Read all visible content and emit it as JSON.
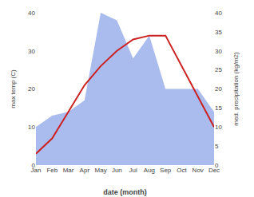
{
  "chart_data": {
    "type": "line",
    "categories": [
      "Jan",
      "Feb",
      "Mar",
      "Apr",
      "May",
      "Jun",
      "Jul",
      "Aug",
      "Sep",
      "Oct",
      "Nov",
      "Dec"
    ],
    "series": [
      {
        "type": "area",
        "color": "#aabbee",
        "axis": "y2",
        "values": [
          10,
          13,
          14,
          17,
          40,
          38,
          28,
          34,
          20,
          20,
          20,
          14
        ]
      },
      {
        "type": "line",
        "color": "#cc2222",
        "axis": "y",
        "values": [
          3,
          7,
          14,
          21,
          26,
          30,
          33,
          34,
          34,
          26,
          18,
          10
        ]
      }
    ],
    "xlabel": "date (month)",
    "ylabel": "max temp (C)",
    "y2label": "med. precipitation (kg/m2)",
    "ylim": [
      0,
      40
    ],
    "yticks": [
      0,
      10,
      20,
      30,
      40
    ],
    "y2lim": [
      0,
      40
    ],
    "y2ticks": [
      0,
      5,
      10,
      15,
      20,
      25,
      30,
      35,
      40
    ],
    "grid": false
  }
}
